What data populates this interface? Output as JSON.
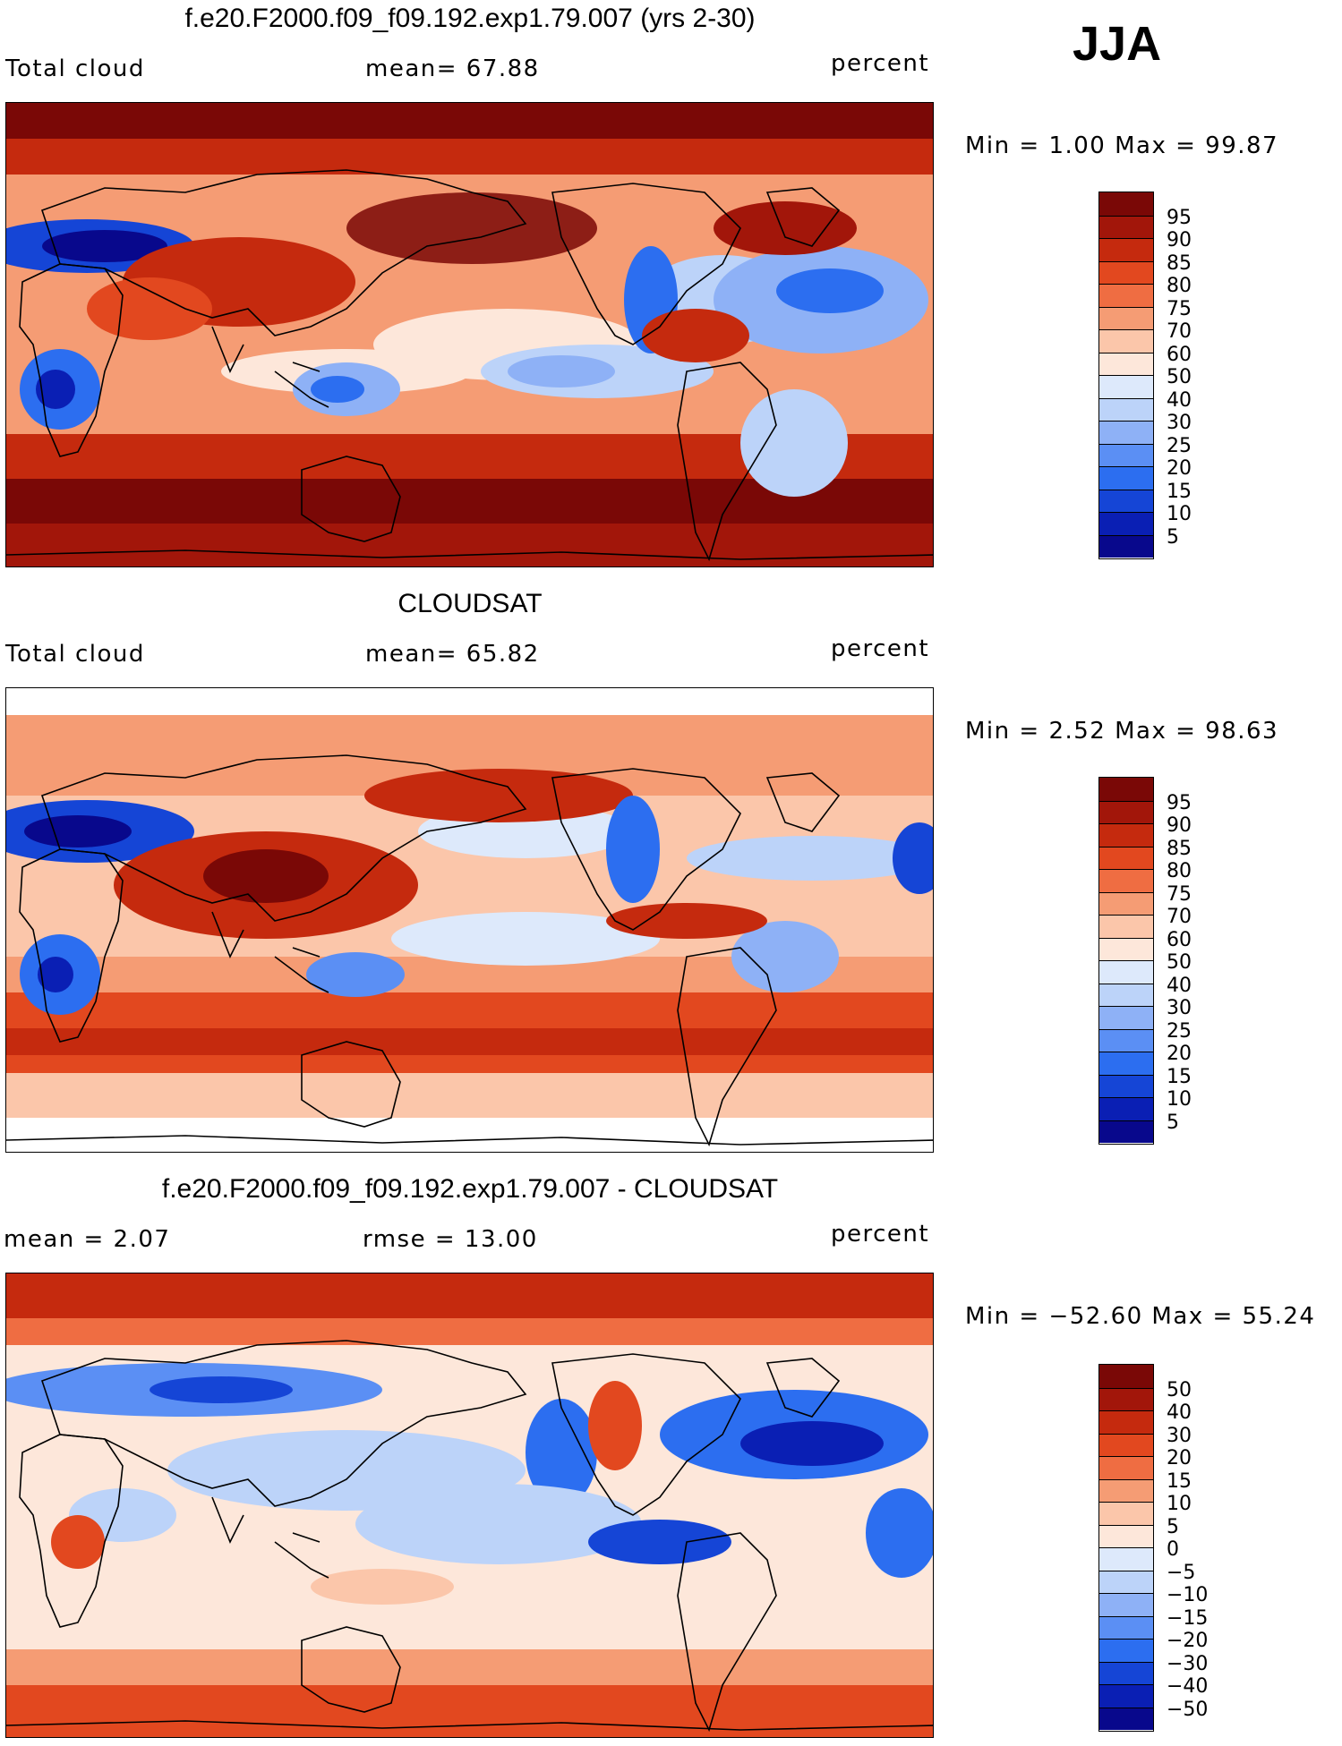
{
  "season": "JJA",
  "palette_full": [
    "#08088c",
    "#0a1fb4",
    "#1545d6",
    "#2c6ef0",
    "#5b8ff4",
    "#8eb1f6",
    "#bcd3f9",
    "#dde9fb",
    "#fde7da",
    "#fbc6aa",
    "#f59c74",
    "#ef6d42",
    "#e2481f",
    "#c52a0e",
    "#a2160a",
    "#7a0806"
  ],
  "palette_diff": [
    "#08088c",
    "#0a1fb4",
    "#1545d6",
    "#2c6ef0",
    "#5b8ff4",
    "#8eb1f6",
    "#bcd3f9",
    "#dde9fb",
    "#fde7da",
    "#fbc6aa",
    "#f59c74",
    "#ef6d42",
    "#e2481f",
    "#c52a0e",
    "#a2160a",
    "#7a0806"
  ],
  "panels": [
    {
      "title": "f.e20.F2000.f09_f09.192.exp1.79.007 (yrs 2-30)",
      "left_label": "Total cloud",
      "mid_label": "mean=   67.88",
      "right_label": "percent",
      "minmax": "Min =     1.00  Max =    99.87",
      "colorbar_labels": [
        "95",
        "90",
        "85",
        "80",
        "75",
        "70",
        "60",
        "50",
        "40",
        "30",
        "25",
        "20",
        "15",
        "10",
        "5"
      ]
    },
    {
      "title": "CLOUDSAT",
      "left_label": "Total cloud",
      "mid_label": "mean=   65.82",
      "right_label": "percent",
      "minmax": "Min =    2.52  Max =    98.63",
      "colorbar_labels": [
        "95",
        "90",
        "85",
        "80",
        "75",
        "70",
        "60",
        "50",
        "40",
        "30",
        "25",
        "20",
        "15",
        "10",
        "5"
      ]
    },
    {
      "title": "f.e20.F2000.f09_f09.192.exp1.79.007 - CLOUDSAT",
      "left_label": "mean =     2.07",
      "mid_label": "rmse  =    13.00",
      "right_label": "percent",
      "minmax": "Min =  −52.60  Max =    55.24",
      "colorbar_labels": [
        "50",
        "40",
        "30",
        "20",
        "15",
        "10",
        "5",
        "0",
        "−5",
        "−10",
        "−15",
        "−20",
        "−30",
        "−40",
        "−50"
      ]
    }
  ],
  "chart_data": [
    {
      "type": "heatmap",
      "title": "f.e20.F2000.f09_f09.192.exp1.79.007 (yrs 2-30)",
      "field": "Total cloud",
      "units": "percent",
      "season": "JJA",
      "mean": 67.88,
      "min": 1.0,
      "max": 99.87,
      "contour_levels": [
        5,
        10,
        15,
        20,
        25,
        30,
        40,
        50,
        60,
        70,
        75,
        80,
        85,
        90,
        95
      ]
    },
    {
      "type": "heatmap",
      "title": "CLOUDSAT",
      "field": "Total cloud",
      "units": "percent",
      "season": "JJA",
      "mean": 65.82,
      "min": 2.52,
      "max": 98.63,
      "contour_levels": [
        5,
        10,
        15,
        20,
        25,
        30,
        40,
        50,
        60,
        70,
        75,
        80,
        85,
        90,
        95
      ]
    },
    {
      "type": "heatmap",
      "title": "f.e20.F2000.f09_f09.192.exp1.79.007 - CLOUDSAT",
      "units": "percent",
      "season": "JJA",
      "mean": 2.07,
      "rmse": 13.0,
      "min": -52.6,
      "max": 55.24,
      "contour_levels": [
        -50,
        -40,
        -30,
        -20,
        -15,
        -10,
        -5,
        0,
        5,
        10,
        15,
        20,
        30,
        40,
        50
      ]
    }
  ]
}
